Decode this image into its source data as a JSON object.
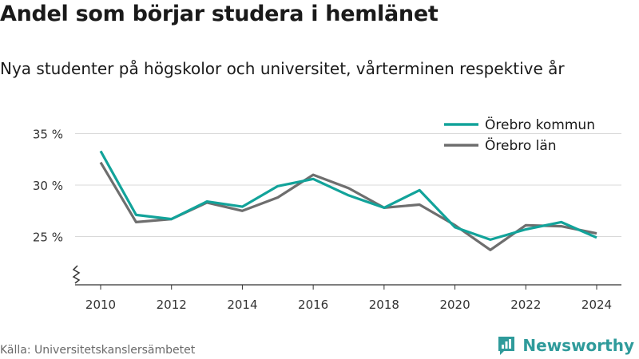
{
  "title": "Andel som börjar studera i hemlänet",
  "subtitle": "Nya studenter på högskolor och universitet, vårterminen respektive år",
  "source": "Källa: Universitetskanslersämbetet",
  "brand": {
    "name": "Newsworthy",
    "icon": "newsworthy-logo-icon",
    "color": "#2f9b9b"
  },
  "chart_data": {
    "type": "line",
    "x": [
      2010,
      2011,
      2012,
      2013,
      2014,
      2015,
      2016,
      2017,
      2018,
      2019,
      2020,
      2021,
      2022,
      2023,
      2024
    ],
    "series": [
      {
        "name": "Örebro kommun",
        "color": "#12a39a",
        "values": [
          33.3,
          27.1,
          26.7,
          28.4,
          27.9,
          29.9,
          30.6,
          29.0,
          27.8,
          29.5,
          25.9,
          24.7,
          25.7,
          26.4,
          24.9
        ]
      },
      {
        "name": "Örebro län",
        "color": "#6e6e6e",
        "values": [
          32.2,
          26.4,
          26.7,
          28.3,
          27.5,
          28.8,
          31.0,
          29.7,
          27.8,
          28.1,
          26.1,
          23.7,
          26.1,
          26.0,
          25.3
        ]
      }
    ],
    "x_ticks": [
      2010,
      2012,
      2014,
      2016,
      2018,
      2020,
      2022,
      2024
    ],
    "y_ticks": [
      25,
      30,
      35
    ],
    "y_tick_labels": [
      "25 %",
      "30 %",
      "35 %"
    ],
    "ylim": [
      20,
      35
    ],
    "xlim": [
      2010,
      2024
    ],
    "xlabel": "",
    "ylabel": "",
    "y_axis_break": true,
    "grid": "horizontal",
    "legend_position": "top-right"
  }
}
